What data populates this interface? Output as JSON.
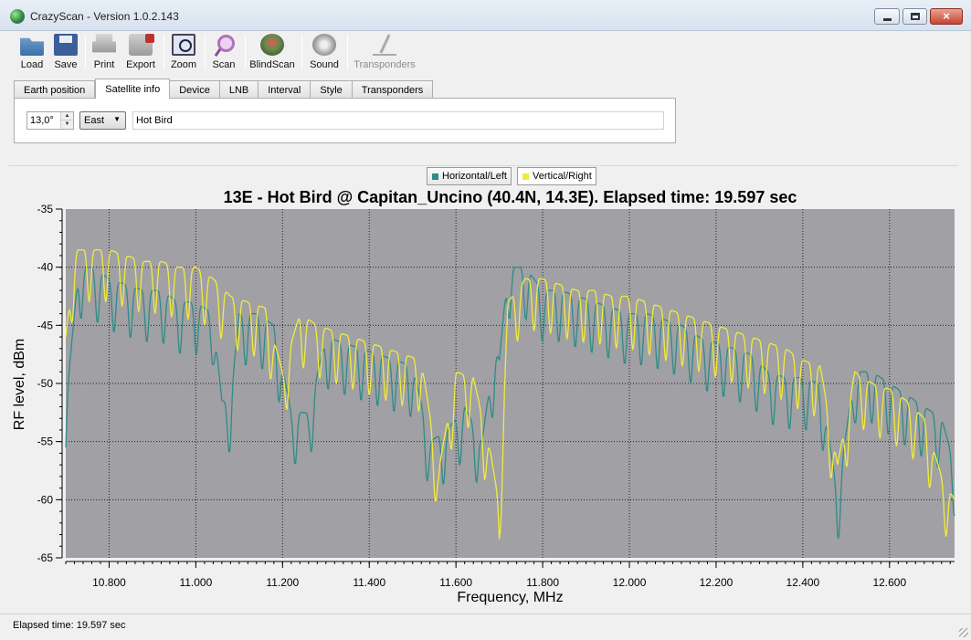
{
  "window": {
    "title": "CrazyScan - Version 1.0.2.143",
    "icon": "globe-icon",
    "controls": {
      "minimize": "minimize-icon",
      "maximize": "maximize-icon",
      "close": "×"
    }
  },
  "toolbar": {
    "items": [
      {
        "label": "Load",
        "icon": "folder-open-icon",
        "enabled": true
      },
      {
        "label": "Save",
        "icon": "floppy-icon",
        "enabled": true
      },
      {
        "label": "Print",
        "icon": "printer-icon",
        "enabled": true
      },
      {
        "label": "Export",
        "icon": "export-icon",
        "enabled": true
      },
      {
        "label": "Zoom",
        "icon": "zoom-icon",
        "enabled": true
      },
      {
        "label": "Scan",
        "icon": "magnifier-icon",
        "enabled": true
      },
      {
        "label": "BlindScan",
        "icon": "blindscan-icon",
        "enabled": true
      },
      {
        "label": "Sound",
        "icon": "speaker-icon",
        "enabled": true
      },
      {
        "label": "Transponders",
        "icon": "transponders-icon",
        "enabled": false
      }
    ]
  },
  "tabs": {
    "items": [
      "Earth position",
      "Satellite info",
      "Device",
      "LNB",
      "Interval",
      "Style",
      "Transponders"
    ],
    "active": "Satellite info"
  },
  "satellite": {
    "position_value": "13,0°",
    "direction": "East",
    "name": "Hot Bird"
  },
  "legend": {
    "horizontal": "Horizontal/Left",
    "vertical": "Vertical/Right"
  },
  "colors": {
    "plot_bg": "#a0a0a5",
    "horizontal": "#2f8c86",
    "vertical": "#f0ec3c"
  },
  "chart_data": {
    "type": "line",
    "title": "13E - Hot Bird @ Capitan_Uncino (40.4N, 14.3E). Elapsed time: 19.597 sec",
    "xlabel": "Frequency, MHz",
    "ylabel": "RF level, dBm",
    "xlim": [
      10700,
      12750
    ],
    "ylim": [
      -65,
      -35
    ],
    "xticks": [
      "10.800",
      "11.000",
      "11.200",
      "11.400",
      "11.600",
      "11.800",
      "12.000",
      "12.200",
      "12.400",
      "12.600"
    ],
    "yticks": [
      "-35",
      "-40",
      "-45",
      "-50",
      "-55",
      "-60",
      "-65"
    ],
    "grid": true,
    "series": [
      {
        "name": "Horizontal/Left",
        "x": [
          10700,
          10730,
          10760,
          10800,
          10840,
          10880,
          10920,
          10960,
          11000,
          11040,
          11060,
          11080,
          11100,
          11140,
          11180,
          11220,
          11260,
          11300,
          11340,
          11380,
          11420,
          11460,
          11500,
          11540,
          11580,
          11620,
          11660,
          11690,
          11700,
          11720,
          11760,
          11800,
          11840,
          11880,
          11920,
          11960,
          12000,
          12040,
          12080,
          12120,
          12160,
          12200,
          12240,
          12280,
          12320,
          12360,
          12400,
          12440,
          12480,
          12520,
          12560,
          12600,
          12640,
          12680,
          12720,
          12750
        ],
        "y": [
          -52,
          -40,
          -40,
          -41,
          -41.5,
          -42,
          -42,
          -43,
          -43,
          -44,
          -51.5,
          -51.5,
          -44,
          -44,
          -45,
          -52.5,
          -52.5,
          -46,
          -46.5,
          -47,
          -47.5,
          -48,
          -48.5,
          -55,
          -54,
          -52,
          -55,
          -47,
          -48,
          -40,
          -40,
          -42,
          -42,
          -42.5,
          -43,
          -43.5,
          -44,
          -44,
          -44.5,
          -45,
          -46,
          -46.5,
          -47,
          -47.5,
          -49,
          -49.5,
          -49.5,
          -50,
          -59.5,
          -49,
          -49,
          -50,
          -51,
          -52,
          -53,
          -57
        ]
      },
      {
        "name": "Vertical/Right",
        "x": [
          10700,
          10720,
          10760,
          10800,
          10840,
          10880,
          10920,
          10960,
          11000,
          11040,
          11080,
          11120,
          11160,
          11200,
          11240,
          11280,
          11320,
          11360,
          11400,
          11440,
          11480,
          11520,
          11560,
          11600,
          11640,
          11680,
          11700,
          11720,
          11760,
          11800,
          11840,
          11880,
          11920,
          11960,
          12000,
          12040,
          12080,
          12120,
          12160,
          12200,
          12240,
          12280,
          12320,
          12360,
          12400,
          12440,
          12480,
          12520,
          12560,
          12600,
          12640,
          12680,
          12720,
          12750
        ],
        "y": [
          -46,
          -38.5,
          -38.5,
          -38.5,
          -39,
          -39.5,
          -39.5,
          -40,
          -40,
          -41,
          -42.5,
          -43,
          -43.5,
          -49,
          -44,
          -45,
          -45.5,
          -46,
          -46.5,
          -47,
          -47.5,
          -48,
          -57.5,
          -49,
          -49.5,
          -56,
          -60.5,
          -43,
          -41,
          -41,
          -41.5,
          -42,
          -42,
          -42.5,
          -42.5,
          -43,
          -43.5,
          -44,
          -44.5,
          -45,
          -45.5,
          -46,
          -46.5,
          -47,
          -48,
          -48.5,
          -57,
          -49,
          -50,
          -50.5,
          -51.5,
          -53,
          -58,
          -60
        ]
      }
    ]
  },
  "status": {
    "text": "Elapsed time: 19.597 sec"
  }
}
